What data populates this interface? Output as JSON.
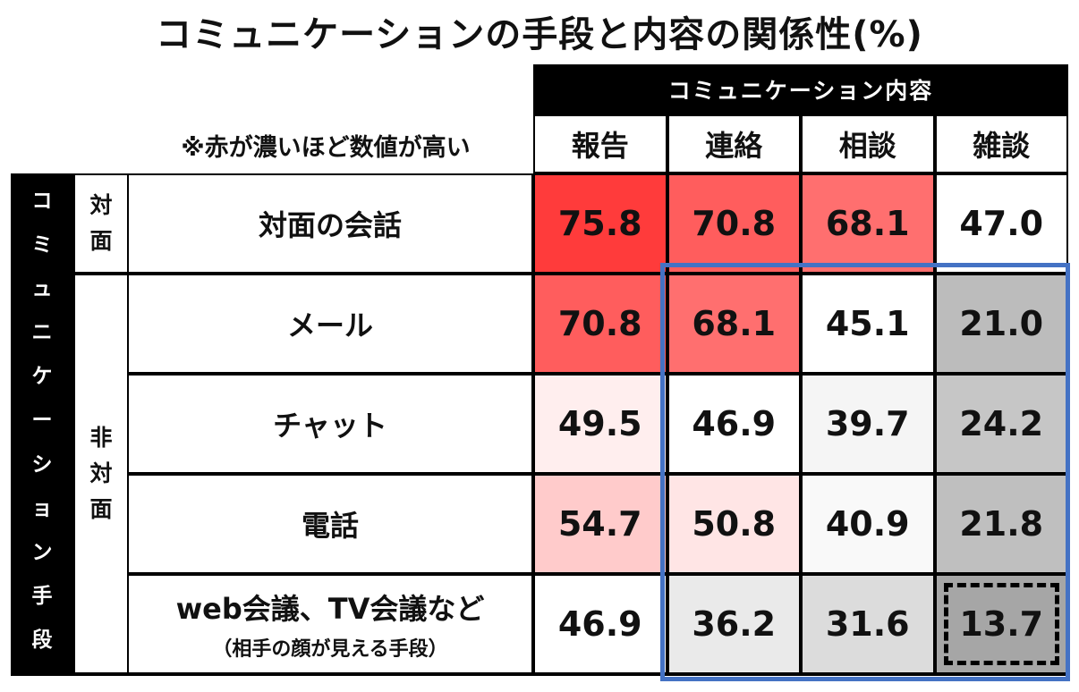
{
  "title": "コミュニケーションの手段と内容の関係性(%)",
  "note": "※赤が濃いほど数値が高い",
  "column_group": "コミュニケーション内容",
  "row_group": "コミュニケーション手段",
  "colors": {
    "highlight_box": "#4472C4",
    "scale_high": "#FF3B3B",
    "scale_mid": "#FFFFFF",
    "scale_low": "#A6A6A6"
  },
  "chart_data": {
    "type": "heatmap",
    "title": "コミュニケーションの手段と内容の関係性(%)",
    "columns": [
      "報告",
      "連絡",
      "相談",
      "雑談"
    ],
    "row_groups": [
      {
        "label": "対面",
        "rows": [
          0
        ]
      },
      {
        "label": "非対面",
        "rows": [
          1,
          2,
          3,
          4
        ]
      }
    ],
    "rows": [
      {
        "label": "対面の会話",
        "sub": "",
        "values": [
          75.8,
          70.8,
          68.1,
          47.0
        ],
        "display": [
          "75.8",
          "70.8",
          "68.1",
          "47.0"
        ]
      },
      {
        "label": "メール",
        "sub": "",
        "values": [
          70.8,
          68.1,
          45.1,
          21.0
        ],
        "display": [
          "70.8",
          "68.1",
          "45.1",
          "21.0"
        ]
      },
      {
        "label": "チャット",
        "sub": "",
        "values": [
          49.5,
          46.9,
          39.7,
          24.2
        ],
        "display": [
          "49.5",
          "46.9",
          "39.7",
          "24.2"
        ]
      },
      {
        "label": "電話",
        "sub": "",
        "values": [
          54.7,
          50.8,
          40.9,
          21.8
        ],
        "display": [
          "54.7",
          "50.8",
          "40.9",
          "21.8"
        ]
      },
      {
        "label": "web会議、TV会議など",
        "sub": "（相手の顔が見える手段）",
        "values": [
          46.9,
          36.2,
          31.6,
          13.7
        ],
        "display": [
          "46.9",
          "36.2",
          "31.6",
          "13.7"
        ]
      }
    ],
    "highlight": {
      "rows": [
        1,
        4
      ],
      "cols": [
        1,
        3
      ]
    },
    "dashed_cell": {
      "row": 4,
      "col": 3
    }
  }
}
